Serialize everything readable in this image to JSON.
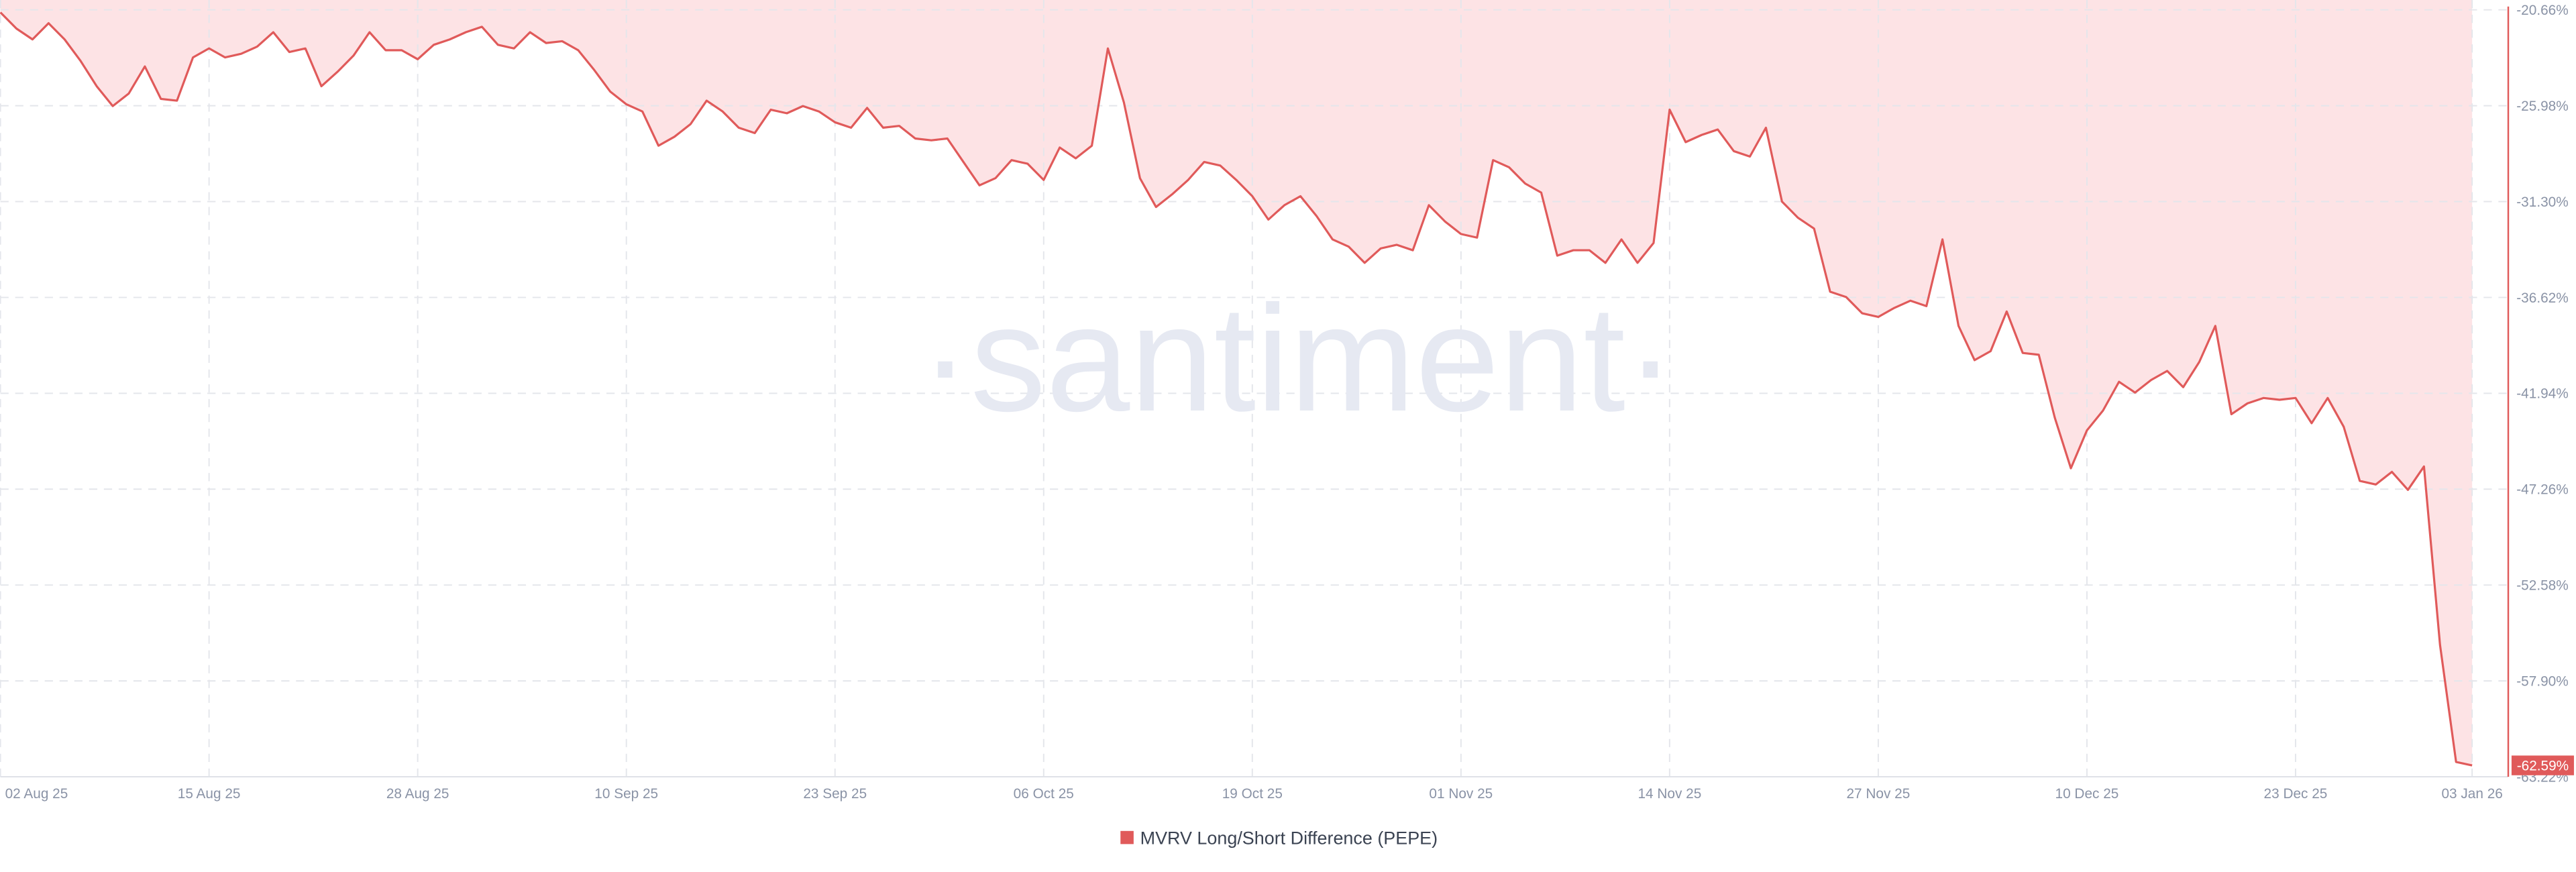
{
  "chart_data": {
    "type": "area-line",
    "watermark": "·santiment·",
    "series": [
      {
        "name": "MVRV Long/Short Difference (PEPE)",
        "color": "#e05a5a",
        "fill": "#fde3e5",
        "values": [
          -20.8,
          -21.7,
          -22.3,
          -21.4,
          -22.3,
          -23.5,
          -24.9,
          -26.0,
          -25.3,
          -23.8,
          -25.6,
          -25.7,
          -23.3,
          -22.8,
          -23.3,
          -23.1,
          -22.7,
          -21.9,
          -23.0,
          -22.8,
          -24.9,
          -24.1,
          -23.2,
          -21.9,
          -22.9,
          -22.9,
          -23.4,
          -22.6,
          -22.3,
          -21.9,
          -21.6,
          -22.6,
          -22.8,
          -21.9,
          -22.5,
          -22.4,
          -22.9,
          -24.0,
          -25.2,
          -25.9,
          -26.3,
          -28.2,
          -27.7,
          -27.0,
          -25.7,
          -26.3,
          -27.2,
          -27.5,
          -26.2,
          -26.4,
          -26.0,
          -26.3,
          -26.9,
          -27.2,
          -26.1,
          -27.2,
          -27.1,
          -27.8,
          -27.9,
          -27.8,
          -29.1,
          -30.4,
          -30.0,
          -29.0,
          -29.2,
          -30.1,
          -28.3,
          -28.9,
          -28.2,
          -22.8,
          -25.8,
          -30.0,
          -31.6,
          -30.9,
          -30.1,
          -29.1,
          -29.3,
          -30.1,
          -31.0,
          -32.3,
          -31.5,
          -31.0,
          -32.1,
          -33.4,
          -33.8,
          -34.7,
          -33.9,
          -33.7,
          -34.0,
          -31.5,
          -32.4,
          -33.1,
          -33.3,
          -29.0,
          -29.4,
          -30.3,
          -30.8,
          -34.3,
          -34.0,
          -34.0,
          -34.7,
          -33.4,
          -34.7,
          -33.6,
          -26.2,
          -28.0,
          -27.6,
          -27.3,
          -28.5,
          -28.8,
          -27.2,
          -31.3,
          -32.2,
          -32.8,
          -36.3,
          -36.6,
          -37.5,
          -37.7,
          -37.2,
          -36.8,
          -37.1,
          -33.4,
          -38.2,
          -40.1,
          -39.6,
          -37.4,
          -39.7,
          -39.8,
          -43.3,
          -46.1,
          -44.0,
          -42.9,
          -41.3,
          -41.9,
          -41.2,
          -40.7,
          -41.6,
          -40.2,
          -38.2,
          -43.1,
          -42.5,
          -42.2,
          -42.3,
          -42.2,
          -43.6,
          -42.2,
          -43.8,
          -46.8,
          -47.0,
          -46.3,
          -47.3,
          -46.0,
          -55.9,
          -62.4,
          -62.59
        ],
        "value_labels": [
          null,
          null,
          null,
          null,
          null,
          null,
          null,
          null,
          null,
          null,
          null,
          null,
          null,
          null,
          null,
          null,
          null,
          null,
          null,
          null,
          null,
          null,
          null,
          null,
          null,
          null,
          null,
          null,
          null,
          null,
          null,
          null,
          null,
          null,
          null,
          null,
          null,
          null,
          null,
          null,
          null,
          null,
          null,
          null,
          null,
          null,
          null,
          null,
          null,
          null,
          null,
          null,
          null,
          null,
          null,
          null,
          null,
          null,
          null,
          null,
          null,
          null,
          null,
          null,
          null,
          null,
          null,
          null,
          null,
          null,
          null,
          null,
          null,
          null,
          null,
          null,
          null,
          null,
          null,
          null,
          null,
          null,
          null,
          null,
          null,
          null,
          null,
          null,
          null,
          null,
          null,
          null,
          null,
          null,
          null,
          null,
          null,
          null,
          null,
          null,
          null,
          null,
          null,
          null,
          null,
          null,
          null,
          null,
          null,
          null,
          null,
          null,
          null,
          null,
          null,
          null,
          null,
          null,
          null,
          null,
          null,
          null,
          null,
          null,
          null,
          null,
          null,
          null,
          null,
          null,
          null,
          null,
          null,
          null,
          null,
          null,
          null,
          null,
          null,
          null,
          null,
          null,
          null,
          null,
          null,
          null,
          null,
          null,
          null,
          null,
          null,
          null,
          null,
          null,
          "-62.59%"
        ]
      }
    ],
    "x": [
      "2025-08-02",
      "2025-08-03",
      "2025-08-04",
      "2025-08-05",
      "2025-08-06",
      "2025-08-07",
      "2025-08-08",
      "2025-08-09",
      "2025-08-10",
      "2025-08-11",
      "2025-08-12",
      "2025-08-13",
      "2025-08-14",
      "2025-08-15",
      "2025-08-16",
      "2025-08-17",
      "2025-08-18",
      "2025-08-19",
      "2025-08-20",
      "2025-08-21",
      "2025-08-22",
      "2025-08-23",
      "2025-08-24",
      "2025-08-25",
      "2025-08-26",
      "2025-08-27",
      "2025-08-28",
      "2025-08-29",
      "2025-08-30",
      "2025-08-31",
      "2025-09-01",
      "2025-09-02",
      "2025-09-03",
      "2025-09-04",
      "2025-09-05",
      "2025-09-06",
      "2025-09-07",
      "2025-09-08",
      "2025-09-09",
      "2025-09-10",
      "2025-09-11",
      "2025-09-12",
      "2025-09-13",
      "2025-09-14",
      "2025-09-15",
      "2025-09-16",
      "2025-09-17",
      "2025-09-18",
      "2025-09-19",
      "2025-09-20",
      "2025-09-21",
      "2025-09-22",
      "2025-09-23",
      "2025-09-24",
      "2025-09-25",
      "2025-09-26",
      "2025-09-27",
      "2025-09-28",
      "2025-09-29",
      "2025-09-30",
      "2025-10-01",
      "2025-10-02",
      "2025-10-03",
      "2025-10-04",
      "2025-10-05",
      "2025-10-06",
      "2025-10-07",
      "2025-10-08",
      "2025-10-09",
      "2025-10-10",
      "2025-10-11",
      "2025-10-12",
      "2025-10-13",
      "2025-10-14",
      "2025-10-15",
      "2025-10-16",
      "2025-10-17",
      "2025-10-18",
      "2025-10-19",
      "2025-10-20",
      "2025-10-21",
      "2025-10-22",
      "2025-10-23",
      "2025-10-24",
      "2025-10-25",
      "2025-10-26",
      "2025-10-27",
      "2025-10-28",
      "2025-10-29",
      "2025-10-30",
      "2025-10-31",
      "2025-11-01",
      "2025-11-02",
      "2025-11-03",
      "2025-11-04",
      "2025-11-05",
      "2025-11-06",
      "2025-11-07",
      "2025-11-08",
      "2025-11-09",
      "2025-11-10",
      "2025-11-11",
      "2025-11-12",
      "2025-11-13",
      "2025-11-14",
      "2025-11-15",
      "2025-11-16",
      "2025-11-17",
      "2025-11-18",
      "2025-11-19",
      "2025-11-20",
      "2025-11-21",
      "2025-11-22",
      "2025-11-23",
      "2025-11-24",
      "2025-11-25",
      "2025-11-26",
      "2025-11-27",
      "2025-11-28",
      "2025-11-29",
      "2025-11-30",
      "2025-12-01",
      "2025-12-02",
      "2025-12-03",
      "2025-12-04",
      "2025-12-05",
      "2025-12-06",
      "2025-12-07",
      "2025-12-08",
      "2025-12-09",
      "2025-12-10",
      "2025-12-11",
      "2025-12-12",
      "2025-12-13",
      "2025-12-14",
      "2025-12-15",
      "2025-12-16",
      "2025-12-17",
      "2025-12-18",
      "2025-12-19",
      "2025-12-20",
      "2025-12-21",
      "2025-12-22",
      "2025-12-23",
      "2025-12-24",
      "2025-12-25",
      "2025-12-26",
      "2025-12-27",
      "2025-12-28",
      "2025-12-29",
      "2025-12-30",
      "2025-12-31",
      "2026-01-01",
      "2026-01-02",
      "2026-01-03"
    ],
    "xlim": [
      "2025-08-02",
      "2026-01-03"
    ],
    "xticks": [
      {
        "value": "2025-08-02",
        "label": "02 Aug 25"
      },
      {
        "value": "2025-08-15",
        "label": "15 Aug 25"
      },
      {
        "value": "2025-08-28",
        "label": "28 Aug 25"
      },
      {
        "value": "2025-09-10",
        "label": "10 Sep 25"
      },
      {
        "value": "2025-09-23",
        "label": "23 Sep 25"
      },
      {
        "value": "2025-10-06",
        "label": "06 Oct 25"
      },
      {
        "value": "2025-10-19",
        "label": "19 Oct 25"
      },
      {
        "value": "2025-11-01",
        "label": "01 Nov 25"
      },
      {
        "value": "2025-11-14",
        "label": "14 Nov 25"
      },
      {
        "value": "2025-11-27",
        "label": "27 Nov 25"
      },
      {
        "value": "2025-12-10",
        "label": "10 Dec 25"
      },
      {
        "value": "2025-12-23",
        "label": "23 Dec 25"
      },
      {
        "value": "2026-01-03",
        "label": "03 Jan 26"
      }
    ],
    "ylim": [
      -63.22,
      -20.66
    ],
    "yticks": [
      {
        "value": -20.66,
        "label": "-20.66%"
      },
      {
        "value": -25.98,
        "label": "-25.98%"
      },
      {
        "value": -31.3,
        "label": "-31.30%"
      },
      {
        "value": -36.62,
        "label": "-36.62%"
      },
      {
        "value": -41.94,
        "label": "-41.94%"
      },
      {
        "value": -47.26,
        "label": "-47.26%"
      },
      {
        "value": -52.58,
        "label": "-52.58%"
      },
      {
        "value": -57.9,
        "label": "-57.90%"
      },
      {
        "value": -63.22,
        "label": "-63.22%"
      }
    ],
    "grid": true,
    "legend": "bottom"
  }
}
